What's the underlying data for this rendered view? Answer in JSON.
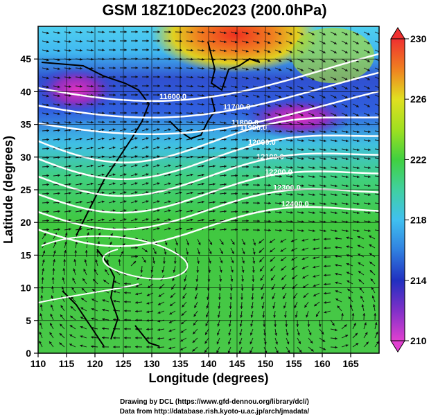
{
  "title": "GSM 18Z10Dec2023 (200.0hPa)",
  "x_axis": {
    "label": "Longitude (degrees)",
    "ticks": [
      "110",
      "115",
      "120",
      "125",
      "130",
      "135",
      "140",
      "145",
      "150",
      "155",
      "160",
      "165"
    ]
  },
  "y_axis": {
    "label": "Latitude (degrees)",
    "ticks": [
      "0",
      "5",
      "10",
      "15",
      "20",
      "25",
      "30",
      "35",
      "40",
      "45"
    ]
  },
  "colorbar": {
    "ticks": [
      "210",
      "214",
      "218",
      "222",
      "226",
      "230"
    ],
    "min": 210,
    "max": 230,
    "colors": [
      "#e040d0",
      "#2030c0",
      "#40b0f0",
      "#40d060",
      "#e0e020",
      "#f03030"
    ]
  },
  "contour_labels": [
    "11600.0",
    "11700.0",
    "11800.0",
    "11900.0",
    "12000.0",
    "12100.0",
    "12200.0",
    "12300.0",
    "12400.0"
  ],
  "credits": {
    "line1": "Drawing by DCL (https://www.gfd-dennou.org/library/dcl/)",
    "line2": "Data from http://database.rish.kyoto-u.ac.jp/arch/jmadata/"
  }
}
